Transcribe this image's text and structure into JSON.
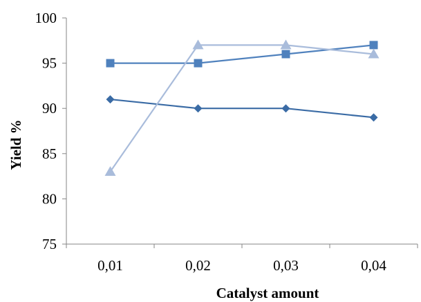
{
  "chart_data": {
    "type": "line",
    "title": "",
    "xlabel": "Catalyst amount",
    "ylabel": "Yield %",
    "categories": [
      "0,01",
      "0,02",
      "0,03",
      "0,04"
    ],
    "ylim": [
      75,
      100
    ],
    "yticks": [
      75,
      80,
      85,
      90,
      95,
      100
    ],
    "grid": false,
    "legend": "none",
    "series": [
      {
        "marker": "diamond",
        "color": "#3A6BA5",
        "values": [
          91,
          90,
          90,
          89
        ]
      },
      {
        "marker": "square",
        "color": "#4F81BD",
        "values": [
          95,
          95,
          96,
          97
        ]
      },
      {
        "marker": "triangle",
        "color": "#A9BCDB",
        "values": [
          83,
          97,
          97,
          96
        ]
      }
    ]
  }
}
